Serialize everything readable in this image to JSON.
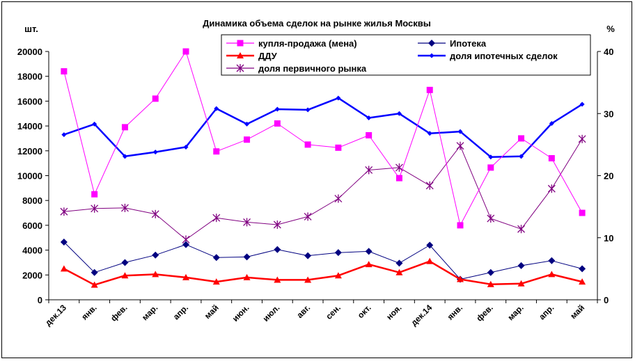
{
  "chart_data": {
    "type": "line",
    "title": "Динамика объема сделок на рынке жилья Москвы",
    "ylabel_left": "шт.",
    "ylabel_right": "%",
    "categories": [
      "дек.13",
      "янв.",
      "фев.",
      "мар.",
      "апр.",
      "май",
      "июн.",
      "июл.",
      "авг.",
      "сен.",
      "окт.",
      "ноя.",
      "дек.14",
      "янв.",
      "фев.",
      "мар.",
      "апр.",
      "май"
    ],
    "y_left": {
      "min": 0,
      "max": 20000,
      "step": 2000,
      "ticks": [
        "0",
        "2000",
        "4000",
        "6000",
        "8000",
        "10000",
        "12000",
        "14000",
        "16000",
        "18000",
        "20000"
      ]
    },
    "y_right": {
      "min": 0,
      "max": 40,
      "step": 10,
      "ticks": [
        "0",
        "10",
        "20",
        "30",
        "40"
      ]
    },
    "grid": false,
    "legend_position": "top",
    "series": [
      {
        "name": "купля-продажа (мена)",
        "axis": "left",
        "color": "#ff00ff",
        "marker": "square",
        "line_width": 1,
        "values": [
          18400,
          8500,
          13900,
          16200,
          20000,
          11950,
          12900,
          14200,
          12500,
          12250,
          13250,
          9800,
          16900,
          6000,
          10650,
          13000,
          11400,
          7000
        ]
      },
      {
        "name": "Ипотека",
        "axis": "left",
        "color": "#000080",
        "marker": "diamond",
        "line_width": 1,
        "values": [
          4650,
          2200,
          3000,
          3600,
          4450,
          3400,
          3450,
          4050,
          3550,
          3800,
          3900,
          2950,
          4400,
          1650,
          2200,
          2750,
          3150,
          2500
        ]
      },
      {
        "name": "ДДУ",
        "axis": "left",
        "color": "#ff0000",
        "marker": "triangle",
        "line_width": 2.5,
        "values": [
          2500,
          1200,
          1950,
          2050,
          1800,
          1450,
          1800,
          1600,
          1600,
          1950,
          2850,
          2200,
          3100,
          1650,
          1250,
          1300,
          2050,
          1450
        ]
      },
      {
        "name": "доля ипотечных сделок",
        "axis": "right",
        "color": "#0000ff",
        "marker": "diamond-small",
        "line_width": 2.5,
        "values": [
          26.6,
          28.3,
          23.1,
          23.8,
          24.6,
          30.8,
          28.3,
          30.7,
          30.6,
          32.5,
          29.3,
          30.0,
          26.8,
          27.1,
          23.0,
          23.1,
          28.4,
          31.5
        ]
      },
      {
        "name": "доля первичного рынка",
        "axis": "right",
        "color": "#800080",
        "marker": "asterisk",
        "line_width": 1,
        "values": [
          14.2,
          14.7,
          14.8,
          13.8,
          9.7,
          13.2,
          12.5,
          12.1,
          13.4,
          16.3,
          20.9,
          21.3,
          18.4,
          24.8,
          13.1,
          11.4,
          17.9,
          25.9
        ]
      }
    ]
  }
}
